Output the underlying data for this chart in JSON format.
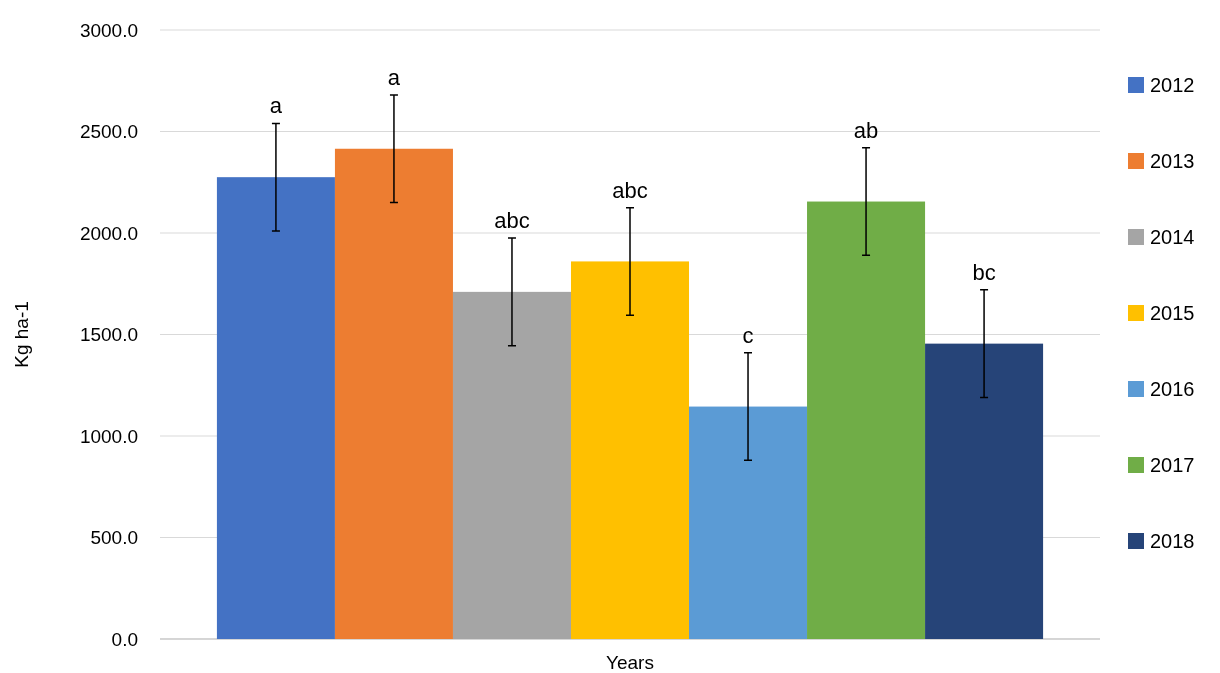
{
  "chart_data": {
    "type": "bar",
    "xlabel": "Years",
    "ylabel": "Kg ha-1",
    "categories": [
      null
    ],
    "series": [
      {
        "name": "2012",
        "color": "#4472c4",
        "values": [
          2275
        ],
        "errors": [
          265
        ],
        "value_labels": [
          "a"
        ]
      },
      {
        "name": "2013",
        "color": "#ed7d31",
        "values": [
          2415
        ],
        "errors": [
          265
        ],
        "value_labels": [
          "a"
        ]
      },
      {
        "name": "2014",
        "color": "#a5a5a5",
        "values": [
          1710
        ],
        "errors": [
          265
        ],
        "value_labels": [
          "abc"
        ]
      },
      {
        "name": "2015",
        "color": "#ffc000",
        "values": [
          1860
        ],
        "errors": [
          265
        ],
        "value_labels": [
          "abc"
        ]
      },
      {
        "name": "2016",
        "color": "#5b9bd5",
        "values": [
          1145
        ],
        "errors": [
          265
        ],
        "value_labels": [
          "c"
        ]
      },
      {
        "name": "2017",
        "color": "#70ad47",
        "values": [
          2155
        ],
        "errors": [
          265
        ],
        "value_labels": [
          "ab"
        ]
      },
      {
        "name": "2018",
        "color": "#264478",
        "values": [
          1455
        ],
        "errors": [
          265
        ],
        "value_labels": [
          "bc"
        ]
      }
    ],
    "ylim": [
      0,
      3000
    ],
    "yticks": [
      {
        "value": 0,
        "label": "0.0"
      },
      {
        "value": 500,
        "label": "500.0"
      },
      {
        "value": 1000,
        "label": "1000.0"
      },
      {
        "value": 1500,
        "label": "1500.0"
      },
      {
        "value": 2000,
        "label": "2000.0"
      },
      {
        "value": 2500,
        "label": "2500.0"
      },
      {
        "value": 3000,
        "label": "3000.0"
      }
    ],
    "grid": "y",
    "legend": "right"
  }
}
